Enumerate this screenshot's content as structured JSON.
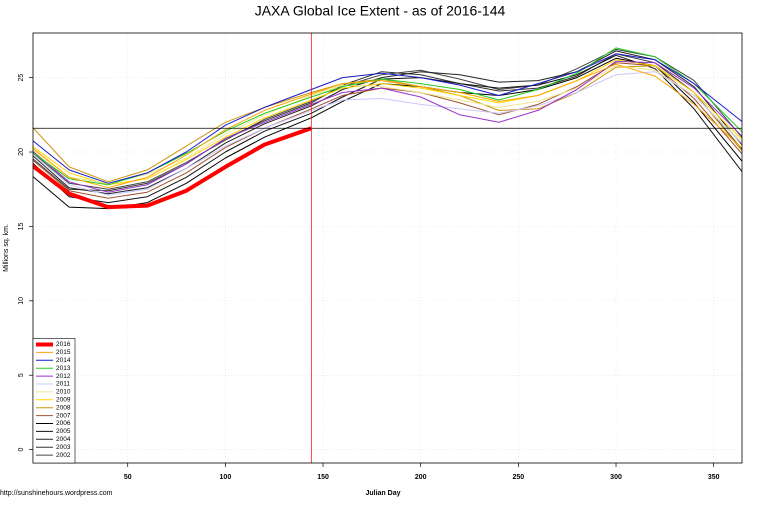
{
  "chart_data": {
    "type": "line",
    "title": "JAXA Global Ice Extent - as of 2016-144",
    "x_label": "Julian Day",
    "y_label": "Millions sq. km.",
    "source": "http://sunshinehours.wordpress.com",
    "x": [
      1,
      20,
      40,
      60,
      80,
      100,
      120,
      144,
      160,
      180,
      200,
      220,
      240,
      260,
      280,
      300,
      320,
      340,
      365
    ],
    "xlim": [
      1.5,
      364.5
    ],
    "ylim": [
      -0.9,
      28
    ],
    "xticks": [
      50,
      100,
      150,
      200,
      250,
      300,
      350
    ],
    "yticks": [
      0,
      5,
      10,
      15,
      20,
      25
    ],
    "grid": true,
    "legend": "bottom-left",
    "hline": 21.6,
    "vline": 144,
    "series": [
      {
        "name": "2016",
        "color": "#ff0000",
        "values": [
          19.1,
          17.2,
          16.3,
          16.4,
          17.4,
          19.0,
          20.5,
          21.6,
          null,
          null,
          null,
          null,
          null,
          null,
          null,
          null,
          null,
          null,
          null
        ]
      },
      {
        "name": "2015",
        "color": "#ffa500",
        "values": [
          20.3,
          18.3,
          17.6,
          18.3,
          19.8,
          21.5,
          22.8,
          23.9,
          24.6,
          24.8,
          24.4,
          24.0,
          23.4,
          23.8,
          24.8,
          25.9,
          25.1,
          23.2,
          20.2
        ]
      },
      {
        "name": "2014",
        "color": "#1a1acd",
        "values": [
          20.8,
          18.8,
          17.9,
          18.6,
          20.0,
          21.8,
          23.0,
          24.2,
          25.0,
          25.3,
          25.0,
          24.5,
          23.8,
          24.6,
          25.4,
          26.6,
          26.2,
          24.6,
          22.0
        ]
      },
      {
        "name": "2013",
        "color": "#22cc22",
        "values": [
          20.0,
          18.2,
          17.8,
          18.6,
          19.9,
          21.4,
          22.6,
          23.7,
          24.4,
          24.9,
          24.6,
          24.2,
          23.5,
          24.2,
          25.3,
          27.0,
          26.4,
          24.6,
          21.3
        ]
      },
      {
        "name": "2012",
        "color": "#9933cc",
        "values": [
          20.1,
          18.0,
          17.3,
          17.8,
          19.2,
          20.9,
          22.0,
          23.2,
          24.0,
          24.3,
          23.7,
          22.5,
          22.0,
          22.8,
          24.2,
          26.1,
          26.0,
          24.3,
          21.0
        ]
      },
      {
        "name": "2011",
        "color": "#c8c8ff",
        "values": [
          19.9,
          17.8,
          17.1,
          17.5,
          18.9,
          20.4,
          21.6,
          22.8,
          23.5,
          23.6,
          23.2,
          22.9,
          22.6,
          23.1,
          24.0,
          25.2,
          25.4,
          23.8,
          20.5
        ]
      },
      {
        "name": "2010",
        "color": "#f0e68c",
        "values": [
          20.2,
          18.3,
          17.9,
          18.5,
          19.6,
          21.2,
          22.5,
          23.8,
          24.5,
          24.4,
          24.0,
          23.5,
          23.0,
          23.4,
          24.3,
          25.8,
          25.5,
          23.8,
          20.6
        ]
      },
      {
        "name": "2009",
        "color": "#ffd700",
        "values": [
          20.4,
          18.6,
          17.8,
          18.2,
          19.5,
          21.0,
          22.3,
          23.5,
          24.3,
          24.6,
          24.3,
          23.8,
          23.3,
          23.8,
          24.8,
          26.2,
          25.8,
          24.0,
          20.8
        ]
      },
      {
        "name": "2008",
        "color": "#cd950c",
        "values": [
          21.7,
          19.0,
          18.0,
          18.8,
          20.4,
          22.0,
          23.0,
          24.0,
          24.6,
          24.9,
          24.4,
          23.8,
          22.8,
          22.9,
          24.0,
          25.7,
          25.8,
          24.0,
          20.0
        ]
      },
      {
        "name": "2007",
        "color": "#a0522d",
        "values": [
          19.5,
          17.4,
          16.9,
          17.3,
          18.6,
          20.3,
          21.6,
          22.9,
          23.8,
          24.3,
          24.0,
          23.3,
          22.5,
          23.2,
          24.4,
          26.0,
          25.8,
          23.6,
          19.8
        ]
      },
      {
        "name": "2006",
        "color": "#000000",
        "values": [
          18.4,
          16.3,
          16.2,
          16.6,
          17.9,
          19.6,
          21.0,
          22.3,
          23.4,
          24.6,
          24.4,
          24.0,
          23.8,
          24.2,
          25.0,
          26.3,
          25.8,
          23.3,
          19.3
        ]
      },
      {
        "name": "2005",
        "color": "#111111",
        "values": [
          19.3,
          17.0,
          16.6,
          17.0,
          18.3,
          20.0,
          21.4,
          22.6,
          23.7,
          24.9,
          25.0,
          24.6,
          24.3,
          24.5,
          25.2,
          26.5,
          25.6,
          22.9,
          18.6
        ]
      },
      {
        "name": "2004",
        "color": "#222222",
        "values": [
          19.8,
          17.6,
          17.2,
          17.6,
          18.9,
          20.6,
          21.9,
          23.1,
          24.2,
          25.0,
          25.4,
          25.2,
          24.7,
          24.8,
          25.4,
          26.8,
          26.2,
          24.4,
          20.4
        ]
      },
      {
        "name": "2003",
        "color": "#333333",
        "values": [
          19.6,
          17.5,
          17.4,
          17.9,
          19.2,
          20.9,
          22.1,
          23.3,
          24.5,
          25.4,
          25.2,
          24.6,
          24.1,
          24.3,
          25.1,
          26.6,
          26.0,
          24.0,
          20.1
        ]
      },
      {
        "name": "2002",
        "color": "#444444",
        "values": [
          20.0,
          17.9,
          17.5,
          18.0,
          19.3,
          20.8,
          22.2,
          23.4,
          24.4,
          25.2,
          25.5,
          24.9,
          24.2,
          24.5,
          25.6,
          26.9,
          26.4,
          24.8,
          20.9
        ]
      }
    ]
  }
}
